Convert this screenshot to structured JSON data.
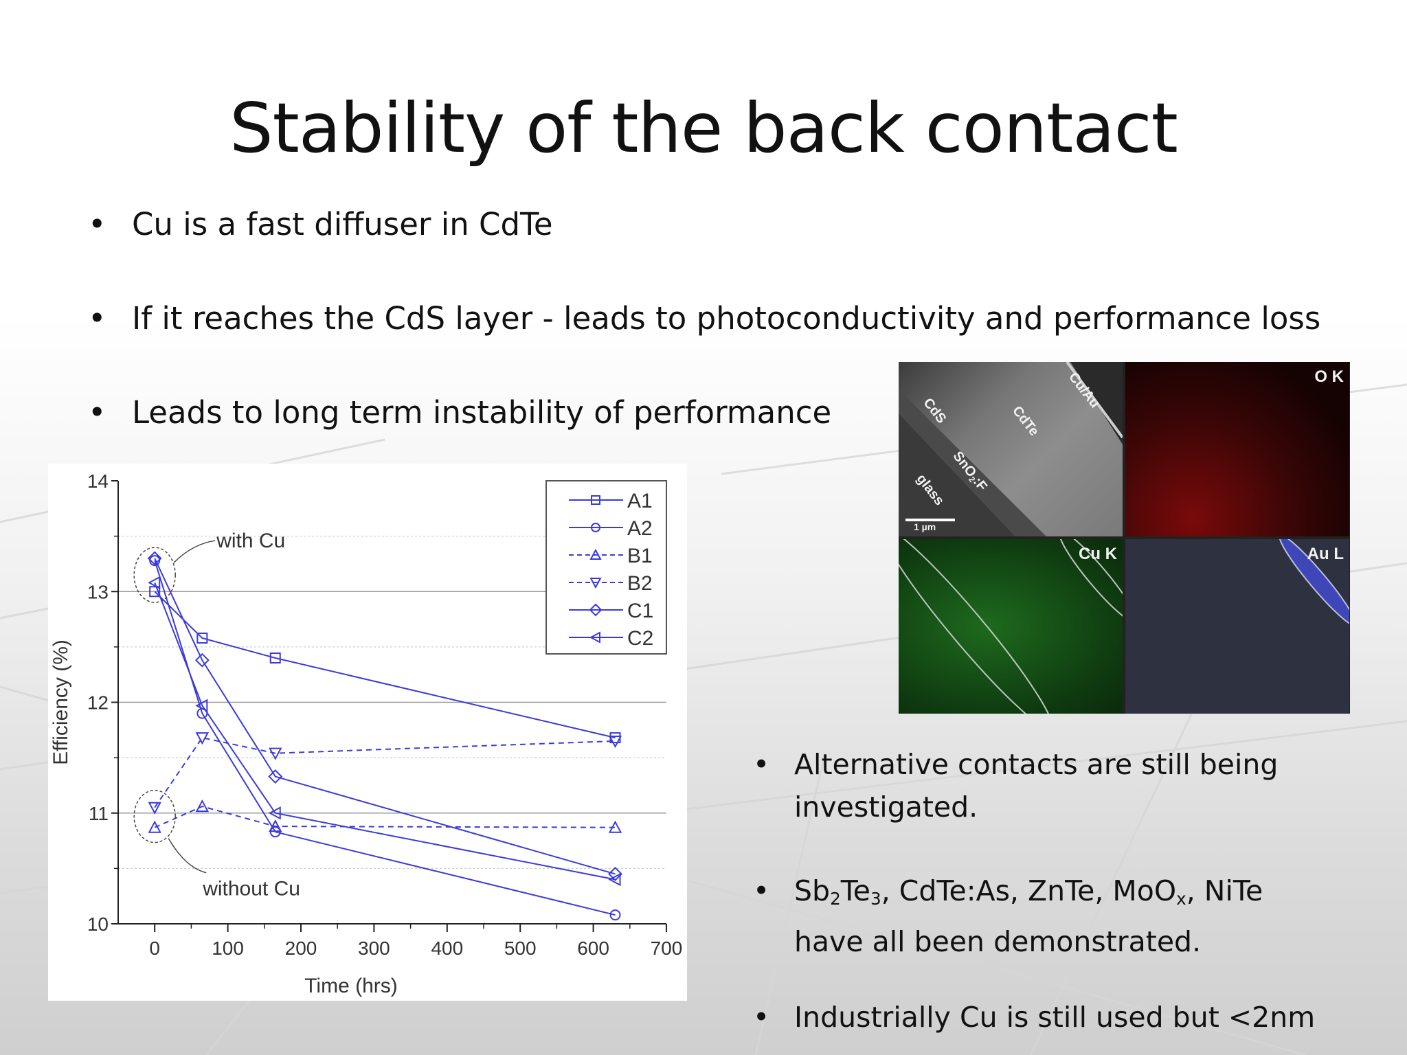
{
  "slide": {
    "title": "Stability of the back contact",
    "bullets_top": [
      "Cu is a fast diffuser in CdTe",
      "If it reaches the CdS layer - leads to photoconductivity and performance loss",
      "Leads to long term instability of performance"
    ],
    "bullets_side": [
      {
        "line1": "Alternative contacts are still being",
        "line2": "investigated."
      },
      {
        "line2": "have all been demonstrated."
      },
      {
        "line1": "Industrially Cu is still used but <2nm"
      }
    ],
    "formula_parts": {
      "sb": "Sb",
      "sub_2": "2",
      "te": "Te",
      "sub_3": "3",
      "rest1": ", CdTe:As, ZnTe, MoO",
      "sub_x": "x",
      "rest2": ", NiTe"
    },
    "bullet_char": "•"
  },
  "micrograph": {
    "labels": {
      "cu_au": "Cu/Au",
      "cds": "CdS",
      "cdte": "CdTe",
      "sno2": "SnO",
      "sno2_sub": "2",
      "sno2_rest": ":F",
      "glass": "glass",
      "scale": "1 µm",
      "o_k": "O K",
      "cu_k": "Cu K",
      "au_l": "Au L"
    }
  },
  "chart_data": {
    "type": "line",
    "xlabel": "Time (hrs)",
    "ylabel": "Efficiency (%)",
    "xlim": [
      -50,
      700
    ],
    "ylim": [
      10,
      14
    ],
    "xticks": [
      0,
      100,
      200,
      300,
      400,
      500,
      600,
      700
    ],
    "yticks": [
      10,
      11,
      12,
      13,
      14
    ],
    "grid": "horizontal",
    "legend_position": "top-right",
    "color": "#3a3adf",
    "series": [
      {
        "name": "A1",
        "marker": "square",
        "dash": false,
        "x": [
          0,
          65,
          165,
          630
        ],
        "y": [
          13.0,
          12.58,
          12.4,
          11.68
        ]
      },
      {
        "name": "A2",
        "marker": "circle",
        "dash": false,
        "x": [
          0,
          65,
          165,
          630
        ],
        "y": [
          13.28,
          11.9,
          10.83,
          10.08
        ]
      },
      {
        "name": "B1",
        "marker": "triangle-up",
        "dash": true,
        "x": [
          0,
          65,
          165,
          630
        ],
        "y": [
          10.87,
          11.06,
          10.88,
          10.87
        ]
      },
      {
        "name": "B2",
        "marker": "triangle-down",
        "dash": true,
        "x": [
          0,
          65,
          165,
          630
        ],
        "y": [
          11.05,
          11.68,
          11.54,
          11.65
        ]
      },
      {
        "name": "C1",
        "marker": "diamond",
        "dash": false,
        "x": [
          0,
          65,
          165,
          630
        ],
        "y": [
          13.3,
          12.38,
          11.33,
          10.45
        ]
      },
      {
        "name": "C2",
        "marker": "triangle-left",
        "dash": false,
        "x": [
          0,
          65,
          165,
          630
        ],
        "y": [
          13.08,
          11.97,
          11.0,
          10.4
        ]
      }
    ],
    "annotations": [
      {
        "text": "with Cu",
        "x": 0,
        "y": 13.15
      },
      {
        "text": "without Cu",
        "x": 0,
        "y": 10.97
      }
    ]
  }
}
